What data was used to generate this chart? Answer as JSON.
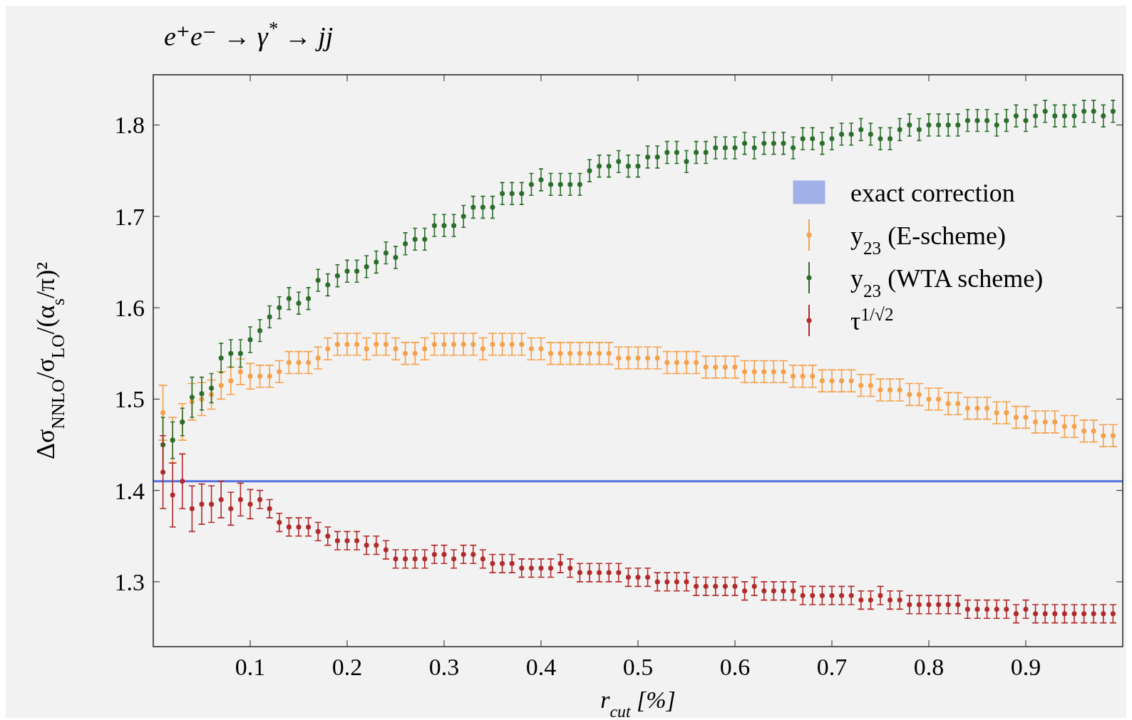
{
  "chart_data": {
    "type": "scatter",
    "title": "e⁺e⁻ → γ$^{*}$ → jj",
    "xlabel": "r$_{cut}$ [%]",
    "ylabel": "Δσ$_{NNLO}$/σ$_{LO}$/(α$_{s}$/π)²",
    "x": [
      0.01,
      0.02,
      0.03,
      0.04,
      0.05,
      0.06,
      0.07,
      0.08,
      0.09,
      0.1,
      0.11,
      0.12,
      0.13,
      0.14,
      0.15,
      0.16,
      0.17,
      0.18,
      0.19,
      0.2,
      0.21,
      0.22,
      0.23,
      0.24,
      0.25,
      0.26,
      0.27,
      0.28,
      0.29,
      0.3,
      0.31,
      0.32,
      0.33,
      0.34,
      0.35,
      0.36,
      0.37,
      0.38,
      0.39,
      0.4,
      0.41,
      0.42,
      0.43,
      0.44,
      0.45,
      0.46,
      0.47,
      0.48,
      0.49,
      0.5,
      0.51,
      0.52,
      0.53,
      0.54,
      0.55,
      0.56,
      0.57,
      0.58,
      0.59,
      0.6,
      0.61,
      0.62,
      0.63,
      0.64,
      0.65,
      0.66,
      0.67,
      0.68,
      0.69,
      0.7,
      0.71,
      0.72,
      0.73,
      0.74,
      0.75,
      0.76,
      0.77,
      0.78,
      0.79,
      0.8,
      0.81,
      0.82,
      0.83,
      0.84,
      0.85,
      0.86,
      0.87,
      0.88,
      0.89,
      0.9,
      0.91,
      0.92,
      0.93,
      0.94,
      0.95,
      0.96,
      0.97,
      0.98,
      0.99
    ],
    "xlim": [
      0,
      1
    ],
    "xticks": [
      0.1,
      0.2,
      0.3,
      0.4,
      0.5,
      0.6,
      0.7,
      0.8,
      0.9
    ],
    "ylim": [
      1.229,
      1.855
    ],
    "yticks": [
      1.3,
      1.4,
      1.5,
      1.6,
      1.7,
      1.8
    ],
    "legend": "right",
    "marker": "circle",
    "grid": false,
    "ref_lines": [
      {
        "axis": "y",
        "value": 1.41,
        "label": "exact correction",
        "color": "#5470e0"
      }
    ],
    "series": [
      {
        "name": "y$_{23}$ (E-scheme)",
        "color": "#f5a04a",
        "values": [
          1.485,
          1.455,
          1.475,
          1.497,
          1.5,
          1.505,
          1.515,
          1.52,
          1.53,
          1.525,
          1.525,
          1.525,
          1.53,
          1.54,
          1.54,
          1.54,
          1.545,
          1.555,
          1.56,
          1.56,
          1.56,
          1.555,
          1.56,
          1.56,
          1.555,
          1.55,
          1.55,
          1.555,
          1.56,
          1.56,
          1.56,
          1.56,
          1.56,
          1.555,
          1.56,
          1.56,
          1.56,
          1.56,
          1.555,
          1.555,
          1.55,
          1.55,
          1.55,
          1.55,
          1.55,
          1.55,
          1.55,
          1.545,
          1.545,
          1.545,
          1.545,
          1.545,
          1.54,
          1.54,
          1.54,
          1.54,
          1.535,
          1.535,
          1.535,
          1.535,
          1.53,
          1.53,
          1.53,
          1.53,
          1.53,
          1.525,
          1.525,
          1.525,
          1.52,
          1.52,
          1.52,
          1.52,
          1.515,
          1.515,
          1.51,
          1.51,
          1.51,
          1.505,
          1.505,
          1.5,
          1.5,
          1.495,
          1.495,
          1.49,
          1.49,
          1.49,
          1.485,
          1.485,
          1.48,
          1.48,
          1.475,
          1.475,
          1.475,
          1.47,
          1.47,
          1.465,
          1.465,
          1.46,
          1.46
        ],
        "errors": [
          0.03,
          0.025,
          0.02,
          0.02,
          0.018,
          0.016,
          0.015,
          0.015,
          0.014,
          0.014,
          0.012,
          0.012,
          0.012,
          0.012,
          0.012,
          0.012,
          0.012,
          0.012,
          0.012,
          0.012,
          0.012,
          0.012,
          0.012,
          0.012,
          0.012,
          0.012,
          0.012,
          0.012,
          0.012,
          0.012,
          0.012,
          0.012,
          0.012,
          0.012,
          0.012,
          0.012,
          0.012,
          0.012,
          0.012,
          0.012,
          0.012,
          0.012,
          0.012,
          0.012,
          0.012,
          0.012,
          0.012,
          0.012,
          0.012,
          0.012,
          0.012,
          0.012,
          0.012,
          0.012,
          0.012,
          0.012,
          0.012,
          0.012,
          0.012,
          0.012,
          0.012,
          0.012,
          0.012,
          0.012,
          0.012,
          0.012,
          0.012,
          0.012,
          0.012,
          0.012,
          0.012,
          0.012,
          0.012,
          0.012,
          0.012,
          0.012,
          0.012,
          0.012,
          0.012,
          0.012,
          0.012,
          0.012,
          0.012,
          0.012,
          0.012,
          0.012,
          0.012,
          0.012,
          0.012,
          0.012,
          0.012,
          0.012,
          0.012,
          0.012,
          0.012,
          0.012,
          0.012,
          0.012,
          0.012
        ]
      },
      {
        "name": "y$_{23}$ (WTA scheme)",
        "color": "#2a6e2a",
        "values": [
          1.45,
          1.455,
          1.475,
          1.502,
          1.506,
          1.512,
          1.545,
          1.55,
          1.55,
          1.565,
          1.575,
          1.59,
          1.6,
          1.61,
          1.605,
          1.61,
          1.63,
          1.625,
          1.635,
          1.64,
          1.64,
          1.645,
          1.65,
          1.66,
          1.655,
          1.67,
          1.675,
          1.675,
          1.69,
          1.69,
          1.69,
          1.7,
          1.71,
          1.71,
          1.71,
          1.725,
          1.725,
          1.725,
          1.735,
          1.74,
          1.735,
          1.735,
          1.735,
          1.735,
          1.75,
          1.755,
          1.755,
          1.76,
          1.755,
          1.755,
          1.765,
          1.765,
          1.77,
          1.77,
          1.76,
          1.77,
          1.77,
          1.775,
          1.775,
          1.775,
          1.78,
          1.775,
          1.78,
          1.78,
          1.78,
          1.775,
          1.785,
          1.785,
          1.78,
          1.785,
          1.79,
          1.79,
          1.795,
          1.79,
          1.785,
          1.785,
          1.795,
          1.8,
          1.795,
          1.8,
          1.8,
          1.8,
          1.8,
          1.805,
          1.805,
          1.805,
          1.8,
          1.805,
          1.81,
          1.805,
          1.81,
          1.815,
          1.81,
          1.81,
          1.81,
          1.815,
          1.815,
          1.81,
          1.815
        ],
        "errors": [
          0.03,
          0.02,
          0.015,
          0.022,
          0.018,
          0.016,
          0.016,
          0.015,
          0.015,
          0.014,
          0.012,
          0.012,
          0.012,
          0.012,
          0.012,
          0.012,
          0.012,
          0.012,
          0.012,
          0.012,
          0.012,
          0.012,
          0.012,
          0.012,
          0.012,
          0.012,
          0.012,
          0.012,
          0.012,
          0.012,
          0.012,
          0.012,
          0.012,
          0.012,
          0.012,
          0.012,
          0.012,
          0.012,
          0.012,
          0.012,
          0.012,
          0.012,
          0.012,
          0.012,
          0.012,
          0.012,
          0.012,
          0.012,
          0.012,
          0.012,
          0.012,
          0.012,
          0.012,
          0.012,
          0.012,
          0.012,
          0.012,
          0.012,
          0.012,
          0.012,
          0.012,
          0.012,
          0.012,
          0.012,
          0.012,
          0.012,
          0.012,
          0.012,
          0.012,
          0.012,
          0.012,
          0.012,
          0.012,
          0.012,
          0.012,
          0.012,
          0.012,
          0.012,
          0.012,
          0.012,
          0.012,
          0.012,
          0.012,
          0.012,
          0.012,
          0.012,
          0.012,
          0.012,
          0.012,
          0.012,
          0.012,
          0.012,
          0.012,
          0.012,
          0.012,
          0.012,
          0.012,
          0.012,
          0.012
        ]
      },
      {
        "name": "τ$^{1/√2}$",
        "color": "#b22a2a",
        "values": [
          1.42,
          1.395,
          1.41,
          1.38,
          1.385,
          1.385,
          1.39,
          1.38,
          1.39,
          1.385,
          1.39,
          1.38,
          1.365,
          1.36,
          1.36,
          1.36,
          1.355,
          1.35,
          1.345,
          1.345,
          1.345,
          1.34,
          1.34,
          1.335,
          1.325,
          1.325,
          1.325,
          1.325,
          1.33,
          1.33,
          1.325,
          1.33,
          1.33,
          1.325,
          1.32,
          1.32,
          1.32,
          1.315,
          1.315,
          1.315,
          1.315,
          1.32,
          1.315,
          1.31,
          1.31,
          1.31,
          1.31,
          1.31,
          1.305,
          1.305,
          1.305,
          1.3,
          1.3,
          1.3,
          1.3,
          1.295,
          1.295,
          1.295,
          1.295,
          1.295,
          1.29,
          1.295,
          1.29,
          1.29,
          1.29,
          1.29,
          1.285,
          1.285,
          1.285,
          1.285,
          1.285,
          1.285,
          1.28,
          1.28,
          1.285,
          1.28,
          1.28,
          1.275,
          1.275,
          1.275,
          1.275,
          1.275,
          1.275,
          1.27,
          1.27,
          1.27,
          1.27,
          1.27,
          1.265,
          1.27,
          1.265,
          1.265,
          1.265,
          1.265,
          1.265,
          1.265,
          1.265,
          1.265,
          1.265
        ],
        "errors": [
          0.04,
          0.035,
          0.03,
          0.025,
          0.022,
          0.02,
          0.02,
          0.018,
          0.018,
          0.016,
          0.01,
          0.01,
          0.01,
          0.01,
          0.01,
          0.01,
          0.01,
          0.01,
          0.01,
          0.01,
          0.01,
          0.01,
          0.01,
          0.01,
          0.01,
          0.01,
          0.01,
          0.01,
          0.01,
          0.01,
          0.01,
          0.01,
          0.01,
          0.01,
          0.01,
          0.01,
          0.01,
          0.01,
          0.01,
          0.01,
          0.01,
          0.01,
          0.01,
          0.01,
          0.01,
          0.01,
          0.01,
          0.01,
          0.01,
          0.01,
          0.01,
          0.01,
          0.01,
          0.01,
          0.01,
          0.01,
          0.01,
          0.01,
          0.01,
          0.01,
          0.01,
          0.01,
          0.01,
          0.01,
          0.01,
          0.01,
          0.01,
          0.01,
          0.01,
          0.01,
          0.01,
          0.01,
          0.01,
          0.01,
          0.01,
          0.01,
          0.01,
          0.01,
          0.01,
          0.01,
          0.01,
          0.01,
          0.01,
          0.01,
          0.01,
          0.01,
          0.01,
          0.01,
          0.01,
          0.01,
          0.01,
          0.01,
          0.01,
          0.01,
          0.01,
          0.01,
          0.01,
          0.01,
          0.01
        ]
      }
    ]
  }
}
